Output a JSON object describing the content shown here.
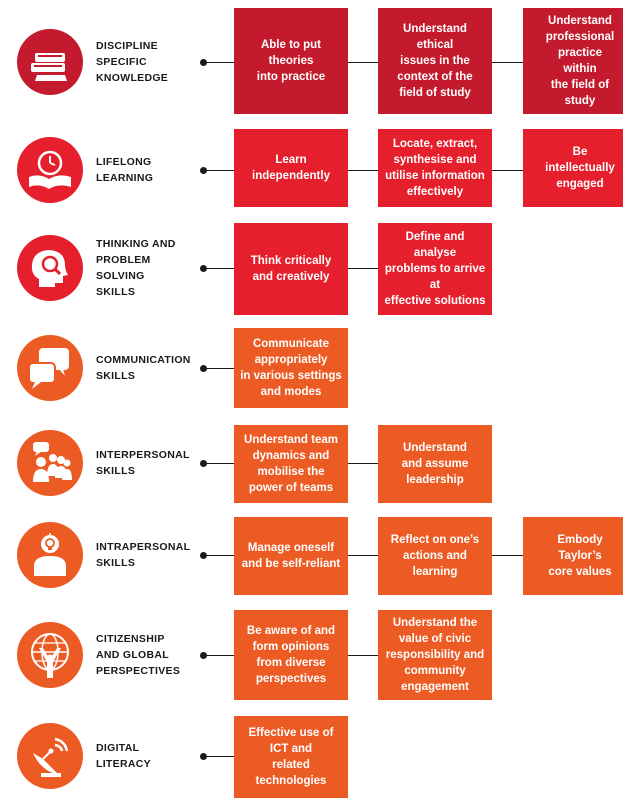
{
  "colors": {
    "dark_red": "#c31b2d",
    "red": "#e51f2c",
    "orange": "#ec5b24",
    "line": "#1a1a1a"
  },
  "rows": [
    {
      "icon": "books-icon",
      "label": [
        "DISCIPLINE",
        "SPECIFIC",
        "KNOWLEDGE"
      ],
      "boxes": [
        [
          "Able to put",
          "theories",
          "into practice"
        ],
        [
          "Understand",
          "ethical",
          "issues in the",
          "context of the",
          "field of study"
        ],
        [
          "Understand",
          "professional",
          "practice",
          "within",
          "the field of",
          "study"
        ]
      ]
    },
    {
      "icon": "book-clock-icon",
      "label": [
        "LIFELONG",
        "LEARNING"
      ],
      "boxes": [
        [
          "Learn",
          "independently"
        ],
        [
          "Locate, extract,",
          "synthesise and",
          "utilise information",
          "effectively"
        ],
        [
          "Be",
          "intellectually",
          "engaged"
        ]
      ]
    },
    {
      "icon": "head-magnifier-icon",
      "label": [
        "THINKING AND",
        "PROBLEM",
        "SOLVING",
        "SKILLS"
      ],
      "boxes": [
        [
          "Think critically",
          "and creatively"
        ],
        [
          "Define and",
          "analyse",
          "problems to arrive",
          "at",
          "effective solutions"
        ]
      ]
    },
    {
      "icon": "speech-bubbles-icon",
      "label": [
        "COMMUNICATION",
        "SKILLS"
      ],
      "boxes": [
        [
          "Communicate",
          "appropriately",
          "in various settings",
          "and modes"
        ]
      ]
    },
    {
      "icon": "team-speaker-icon",
      "label": [
        "INTERPERSONAL",
        "SKILLS"
      ],
      "boxes": [
        [
          "Understand team",
          "dynamics and",
          "mobilise the",
          "power of teams"
        ],
        [
          "Understand",
          "and assume",
          "leadership"
        ]
      ]
    },
    {
      "icon": "person-lightbulb-icon",
      "label": [
        "INTRAPERSONAL",
        "SKILLS"
      ],
      "boxes": [
        [
          "Manage oneself",
          "and be self-reliant"
        ],
        [
          "Reflect on one’s",
          "actions and",
          "learning"
        ],
        [
          "Embody",
          "Taylor’s",
          "core values"
        ]
      ]
    },
    {
      "icon": "globe-person-icon",
      "label": [
        "CITIZENSHIP",
        "AND GLOBAL",
        "PERSPECTIVES"
      ],
      "boxes": [
        [
          "Be aware of and",
          "form opinions",
          "from diverse",
          "perspectives"
        ],
        [
          "Understand the",
          "value of civic",
          "responsibility and",
          "community",
          "engagement"
        ]
      ]
    },
    {
      "icon": "satellite-dish-icon",
      "label": [
        "DIGITAL",
        "LITERACY"
      ],
      "boxes": [
        [
          "Effective use of",
          "ICT and",
          "related",
          "technologies"
        ]
      ]
    }
  ]
}
